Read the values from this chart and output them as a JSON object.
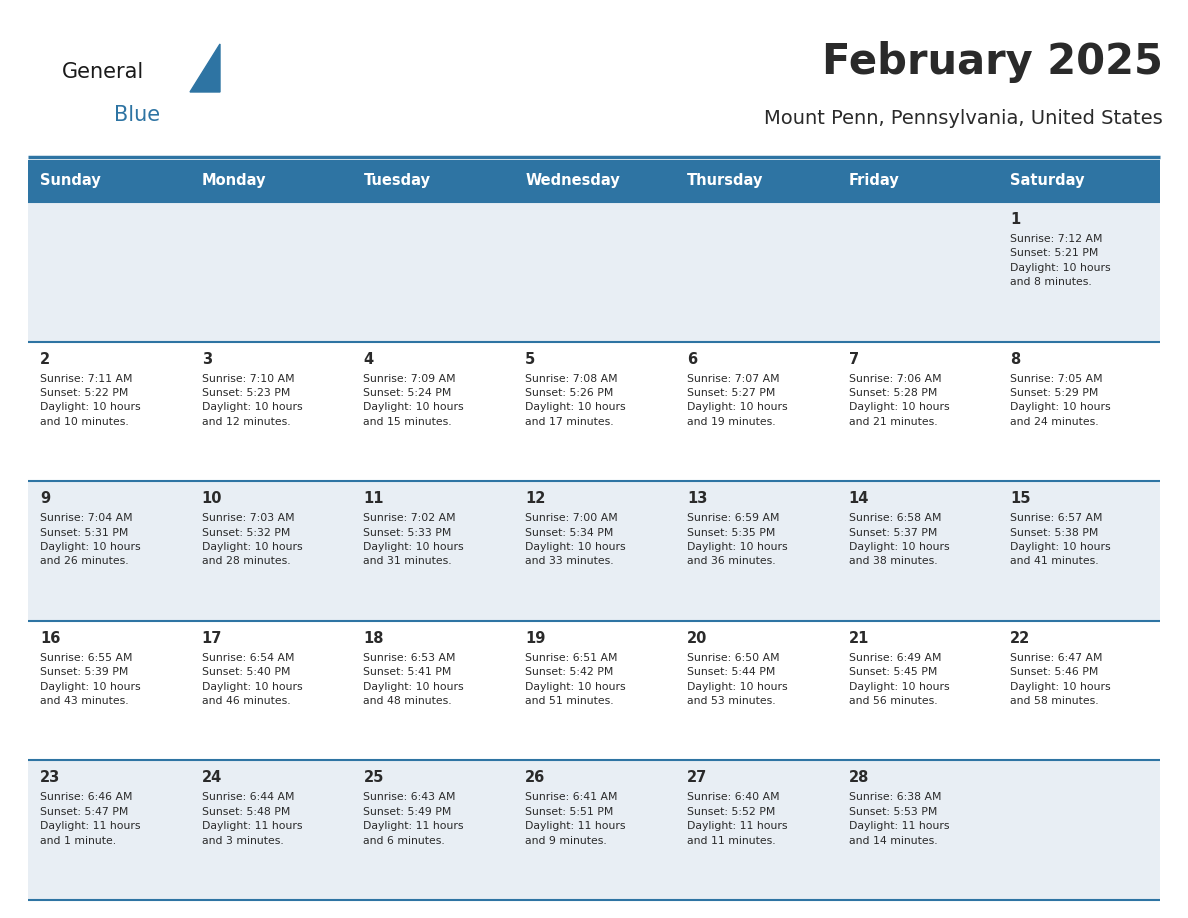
{
  "title": "February 2025",
  "subtitle": "Mount Penn, Pennsylvania, United States",
  "header_bg": "#2e74a3",
  "header_text_color": "#ffffff",
  "cell_bg_light": "#e8eef4",
  "cell_bg_white": "#ffffff",
  "separator_color": "#2e74a3",
  "text_color": "#2a2a2a",
  "day_headers": [
    "Sunday",
    "Monday",
    "Tuesday",
    "Wednesday",
    "Thursday",
    "Friday",
    "Saturday"
  ],
  "logo_color1": "#1a1a1a",
  "logo_color2": "#2e74a3",
  "weeks": [
    [
      {
        "day": "",
        "info": ""
      },
      {
        "day": "",
        "info": ""
      },
      {
        "day": "",
        "info": ""
      },
      {
        "day": "",
        "info": ""
      },
      {
        "day": "",
        "info": ""
      },
      {
        "day": "",
        "info": ""
      },
      {
        "day": "1",
        "info": "Sunrise: 7:12 AM\nSunset: 5:21 PM\nDaylight: 10 hours\nand 8 minutes."
      }
    ],
    [
      {
        "day": "2",
        "info": "Sunrise: 7:11 AM\nSunset: 5:22 PM\nDaylight: 10 hours\nand 10 minutes."
      },
      {
        "day": "3",
        "info": "Sunrise: 7:10 AM\nSunset: 5:23 PM\nDaylight: 10 hours\nand 12 minutes."
      },
      {
        "day": "4",
        "info": "Sunrise: 7:09 AM\nSunset: 5:24 PM\nDaylight: 10 hours\nand 15 minutes."
      },
      {
        "day": "5",
        "info": "Sunrise: 7:08 AM\nSunset: 5:26 PM\nDaylight: 10 hours\nand 17 minutes."
      },
      {
        "day": "6",
        "info": "Sunrise: 7:07 AM\nSunset: 5:27 PM\nDaylight: 10 hours\nand 19 minutes."
      },
      {
        "day": "7",
        "info": "Sunrise: 7:06 AM\nSunset: 5:28 PM\nDaylight: 10 hours\nand 21 minutes."
      },
      {
        "day": "8",
        "info": "Sunrise: 7:05 AM\nSunset: 5:29 PM\nDaylight: 10 hours\nand 24 minutes."
      }
    ],
    [
      {
        "day": "9",
        "info": "Sunrise: 7:04 AM\nSunset: 5:31 PM\nDaylight: 10 hours\nand 26 minutes."
      },
      {
        "day": "10",
        "info": "Sunrise: 7:03 AM\nSunset: 5:32 PM\nDaylight: 10 hours\nand 28 minutes."
      },
      {
        "day": "11",
        "info": "Sunrise: 7:02 AM\nSunset: 5:33 PM\nDaylight: 10 hours\nand 31 minutes."
      },
      {
        "day": "12",
        "info": "Sunrise: 7:00 AM\nSunset: 5:34 PM\nDaylight: 10 hours\nand 33 minutes."
      },
      {
        "day": "13",
        "info": "Sunrise: 6:59 AM\nSunset: 5:35 PM\nDaylight: 10 hours\nand 36 minutes."
      },
      {
        "day": "14",
        "info": "Sunrise: 6:58 AM\nSunset: 5:37 PM\nDaylight: 10 hours\nand 38 minutes."
      },
      {
        "day": "15",
        "info": "Sunrise: 6:57 AM\nSunset: 5:38 PM\nDaylight: 10 hours\nand 41 minutes."
      }
    ],
    [
      {
        "day": "16",
        "info": "Sunrise: 6:55 AM\nSunset: 5:39 PM\nDaylight: 10 hours\nand 43 minutes."
      },
      {
        "day": "17",
        "info": "Sunrise: 6:54 AM\nSunset: 5:40 PM\nDaylight: 10 hours\nand 46 minutes."
      },
      {
        "day": "18",
        "info": "Sunrise: 6:53 AM\nSunset: 5:41 PM\nDaylight: 10 hours\nand 48 minutes."
      },
      {
        "day": "19",
        "info": "Sunrise: 6:51 AM\nSunset: 5:42 PM\nDaylight: 10 hours\nand 51 minutes."
      },
      {
        "day": "20",
        "info": "Sunrise: 6:50 AM\nSunset: 5:44 PM\nDaylight: 10 hours\nand 53 minutes."
      },
      {
        "day": "21",
        "info": "Sunrise: 6:49 AM\nSunset: 5:45 PM\nDaylight: 10 hours\nand 56 minutes."
      },
      {
        "day": "22",
        "info": "Sunrise: 6:47 AM\nSunset: 5:46 PM\nDaylight: 10 hours\nand 58 minutes."
      }
    ],
    [
      {
        "day": "23",
        "info": "Sunrise: 6:46 AM\nSunset: 5:47 PM\nDaylight: 11 hours\nand 1 minute."
      },
      {
        "day": "24",
        "info": "Sunrise: 6:44 AM\nSunset: 5:48 PM\nDaylight: 11 hours\nand 3 minutes."
      },
      {
        "day": "25",
        "info": "Sunrise: 6:43 AM\nSunset: 5:49 PM\nDaylight: 11 hours\nand 6 minutes."
      },
      {
        "day": "26",
        "info": "Sunrise: 6:41 AM\nSunset: 5:51 PM\nDaylight: 11 hours\nand 9 minutes."
      },
      {
        "day": "27",
        "info": "Sunrise: 6:40 AM\nSunset: 5:52 PM\nDaylight: 11 hours\nand 11 minutes."
      },
      {
        "day": "28",
        "info": "Sunrise: 6:38 AM\nSunset: 5:53 PM\nDaylight: 11 hours\nand 14 minutes."
      },
      {
        "day": "",
        "info": ""
      }
    ]
  ]
}
